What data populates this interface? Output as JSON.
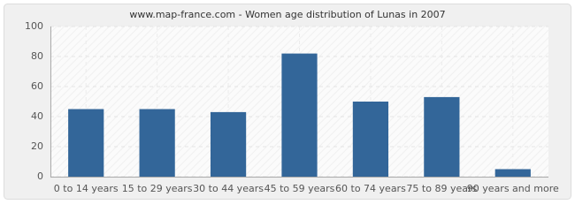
{
  "chart_data": {
    "type": "bar",
    "title": "www.map-france.com - Women age distribution of Lunas in 2007",
    "categories": [
      "0 to 14 years",
      "15 to 29 years",
      "30 to 44 years",
      "45 to 59 years",
      "60 to 74 years",
      "75 to 89 years",
      "90 years and more"
    ],
    "values": [
      45,
      45,
      43,
      82,
      50,
      53,
      5
    ],
    "color": "#336699",
    "ylim": [
      0,
      100
    ],
    "yticks": [
      0,
      20,
      40,
      60,
      80,
      100
    ],
    "grid": true
  }
}
